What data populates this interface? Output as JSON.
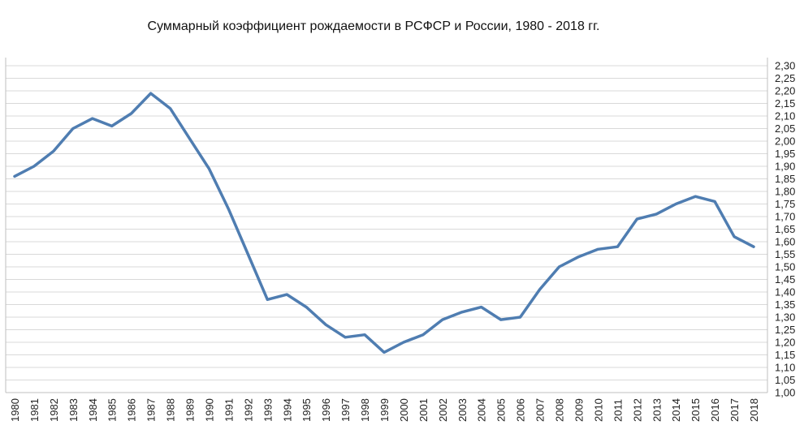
{
  "chart_data": {
    "type": "line",
    "title": "Суммарный коэффициент рождаемости в РСФСР и России, 1980 - 2018 гг.",
    "xlabel": "",
    "ylabel": "",
    "x": [
      1980,
      1981,
      1982,
      1983,
      1984,
      1985,
      1986,
      1987,
      1988,
      1989,
      1990,
      1991,
      1992,
      1993,
      1994,
      1995,
      1996,
      1997,
      1998,
      1999,
      2000,
      2001,
      2002,
      2003,
      2004,
      2005,
      2006,
      2007,
      2008,
      2009,
      2010,
      2011,
      2012,
      2013,
      2014,
      2015,
      2016,
      2017,
      2018
    ],
    "x_tick_labels": [
      "1980",
      "1981",
      "1982",
      "1983",
      "1984",
      "1985",
      "1986",
      "1987",
      "1988",
      "1989",
      "1990",
      "1991",
      "1992",
      "1993",
      "1994",
      "1995",
      "1996",
      "1997",
      "1998",
      "1999",
      "2000",
      "2001",
      "2002",
      "2003",
      "2004",
      "2005",
      "2006",
      "2007",
      "2008",
      "2009",
      "2010",
      "2011",
      "2012",
      "2013",
      "2014",
      "2015",
      "2016",
      "2017",
      "2018"
    ],
    "series": [
      {
        "values": [
          1.86,
          1.9,
          1.96,
          2.05,
          2.09,
          2.06,
          2.11,
          2.19,
          2.13,
          2.01,
          1.89,
          1.73,
          1.55,
          1.37,
          1.39,
          1.34,
          1.27,
          1.22,
          1.23,
          1.16,
          1.2,
          1.23,
          1.29,
          1.32,
          1.34,
          1.29,
          1.3,
          1.41,
          1.5,
          1.54,
          1.57,
          1.58,
          1.69,
          1.71,
          1.75,
          1.78,
          1.76,
          1.62,
          1.58
        ]
      }
    ],
    "ylim": [
      1.0,
      2.3
    ],
    "y_ticks": [
      "1,00",
      "1,05",
      "1,10",
      "1,15",
      "1,20",
      "1,25",
      "1,30",
      "1,35",
      "1,40",
      "1,45",
      "1,50",
      "1,55",
      "1,60",
      "1,65",
      "1,70",
      "1,75",
      "1,80",
      "1,85",
      "1,90",
      "1,95",
      "2,00",
      "2,05",
      "2,10",
      "2,15",
      "2,20",
      "2,25",
      "2,30"
    ],
    "y_axis_side": "right",
    "grid": true,
    "legend": false,
    "colors": {
      "line": "#4f7db1",
      "grid": "#d9d9d9",
      "axis": "#bfbfbf"
    }
  }
}
